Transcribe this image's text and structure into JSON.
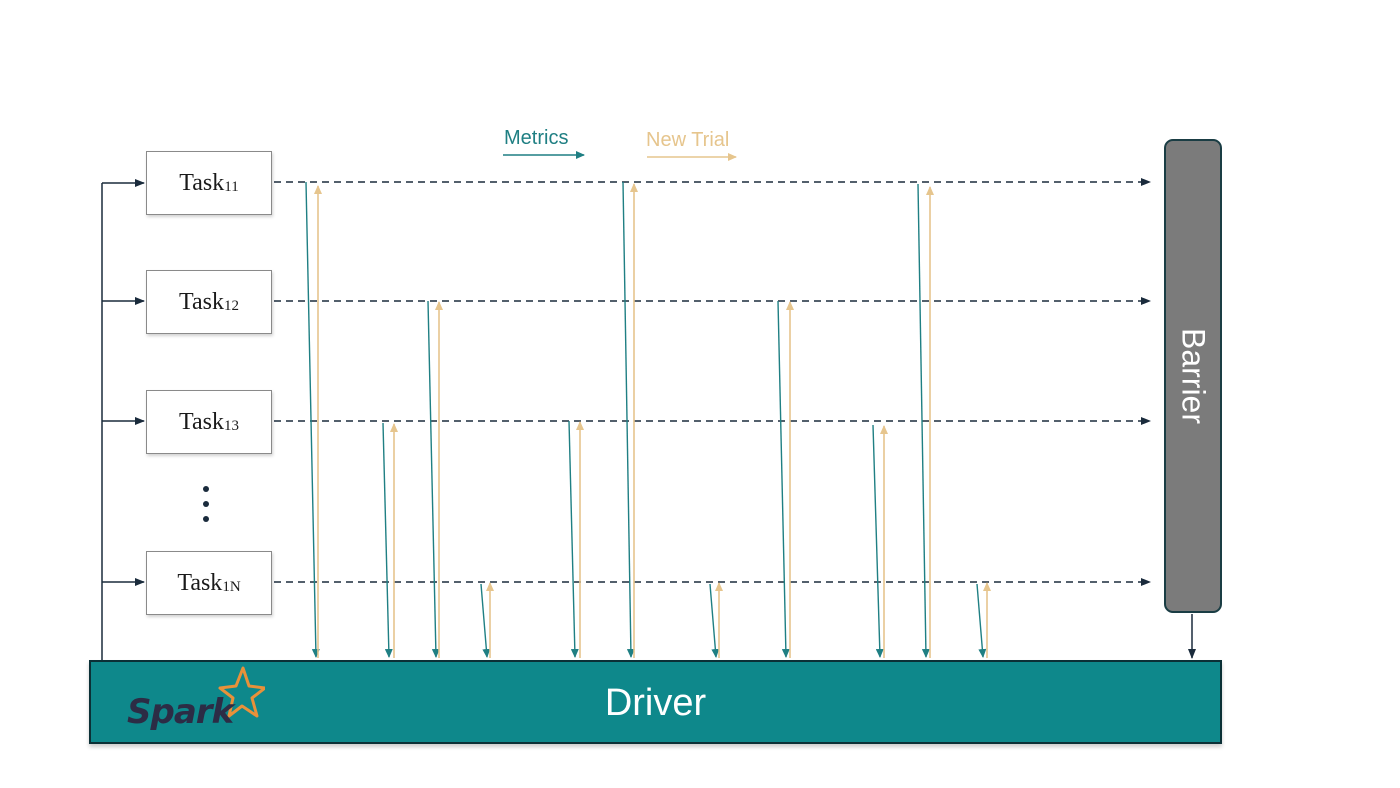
{
  "legend": {
    "metrics_label": "Metrics",
    "new_trial_label": "New Trial",
    "metrics_color": "#1f7f83",
    "new_trial_color": "#e6c58d"
  },
  "tasks": [
    {
      "name": "Task",
      "sub": "11"
    },
    {
      "name": "Task",
      "sub": "12"
    },
    {
      "name": "Task",
      "sub": "13"
    },
    {
      "name": "Task",
      "sub": "1N"
    }
  ],
  "barrier": {
    "label": "Barrier",
    "color": "#7b7b7b"
  },
  "driver": {
    "label": "Driver",
    "color": "#0e888b"
  },
  "logo": {
    "text": "Spark",
    "star_color": "#e8913a"
  }
}
